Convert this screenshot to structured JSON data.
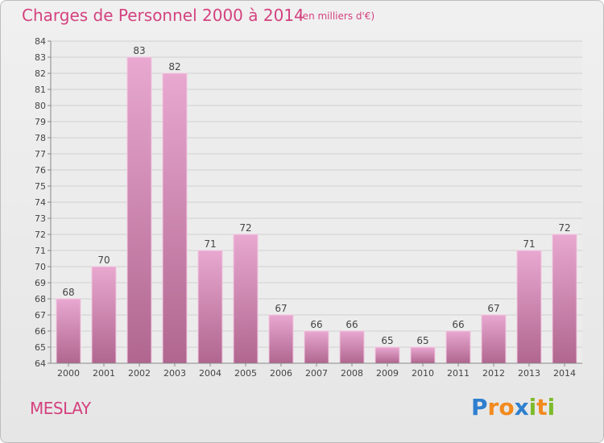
{
  "header": {
    "title": "Charges de Personnel 2000 à 2014",
    "subtitle": "(en milliers d'€)"
  },
  "footer": {
    "commune": "MESLAY",
    "logo": {
      "letters": [
        "P",
        "r",
        "o",
        "x",
        "i",
        "t",
        "i"
      ],
      "colors": [
        "#2e7fcf",
        "#f28a1e",
        "#f28a1e",
        "#2e7fcf",
        "#7dbb2a",
        "#f28a1e",
        "#7dbb2a"
      ]
    }
  },
  "colors": {
    "accent": "#d4427f",
    "bar_light": "#e8a8d0",
    "bar_dark": "#b0668f",
    "grid": "#cccccc"
  },
  "chart_data": {
    "type": "bar",
    "categories": [
      "2000",
      "2001",
      "2002",
      "2003",
      "2004",
      "2005",
      "2006",
      "2007",
      "2008",
      "2009",
      "2010",
      "2011",
      "2012",
      "2013",
      "2014"
    ],
    "values": [
      68,
      70,
      83,
      82,
      71,
      72,
      67,
      66,
      66,
      65,
      65,
      66,
      67,
      71,
      72
    ],
    "title": "Charges de Personnel 2000 à 2014",
    "ylim": [
      64,
      84
    ],
    "yticks": [
      64,
      65,
      66,
      67,
      68,
      69,
      70,
      71,
      72,
      73,
      74,
      75,
      76,
      77,
      78,
      79,
      80,
      81,
      82,
      83,
      84
    ],
    "grid": true,
    "data_labels": true
  }
}
